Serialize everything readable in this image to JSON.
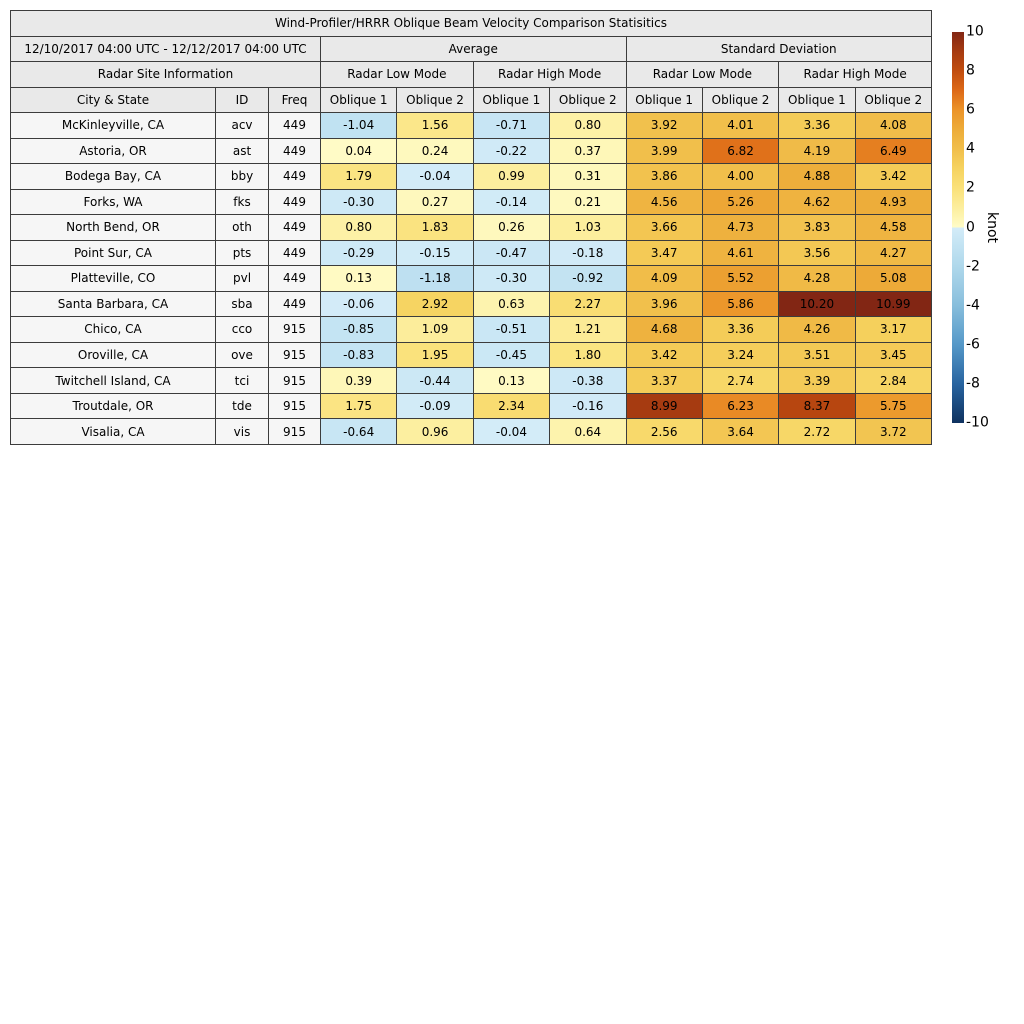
{
  "title": "Wind-Profiler/HRRR Oblique Beam Velocity Comparison Statisitics",
  "period": "12/10/2017 04:00 UTC - 12/12/2017 04:00 UTC",
  "section_headers": {
    "average": "Average",
    "std": "Standard Deviation"
  },
  "site_info_header": "Radar Site Information",
  "mode_headers": [
    "Radar Low Mode",
    "Radar High Mode",
    "Radar Low Mode",
    "Radar High Mode"
  ],
  "column_headers": [
    "City & State",
    "ID",
    "Freq",
    "Oblique 1",
    "Oblique 2",
    "Oblique 1",
    "Oblique 2",
    "Oblique 1",
    "Oblique 2",
    "Oblique 1",
    "Oblique 2"
  ],
  "colorbar": {
    "label": "knot",
    "vmin": -10,
    "vmax": 10,
    "ticks": [
      10,
      8,
      6,
      4,
      2,
      0,
      -2,
      -4,
      -6,
      -8,
      -10
    ],
    "positive_stops": [
      [
        0,
        [
          255,
          252,
          200
        ]
      ],
      [
        1,
        [
          252,
          238,
          158
        ]
      ],
      [
        2,
        [
          250,
          225,
          122
        ]
      ],
      [
        3,
        [
          246,
          211,
          96
        ]
      ],
      [
        4,
        [
          241,
          191,
          75
        ]
      ],
      [
        5,
        [
          237,
          172,
          57
        ]
      ],
      [
        6,
        [
          236,
          148,
          41
        ]
      ],
      [
        7,
        [
          221,
          105,
          23
        ]
      ],
      [
        8,
        [
          193,
          77,
          15
        ]
      ],
      [
        9,
        [
          166,
          59,
          17
        ]
      ],
      [
        10,
        [
          130,
          38,
          20
        ]
      ]
    ],
    "negative_stops": [
      [
        0,
        [
          212,
          236,
          248
        ]
      ],
      [
        -1,
        [
          193,
          226,
          242
        ]
      ],
      [
        -2,
        [
          175,
          216,
          235
        ]
      ],
      [
        -3,
        [
          156,
          203,
          228
        ]
      ],
      [
        -4,
        [
          135,
          190,
          220
        ]
      ],
      [
        -5,
        [
          110,
          171,
          210
        ]
      ],
      [
        -6,
        [
          85,
          152,
          200
        ]
      ],
      [
        -7,
        [
          62,
          126,
          180
        ]
      ],
      [
        -8,
        [
          40,
          100,
          160
        ]
      ],
      [
        -9,
        [
          27,
          75,
          128
        ]
      ],
      [
        -10,
        [
          15,
          50,
          95
        ]
      ]
    ]
  },
  "chart_data": {
    "type": "table",
    "value_columns": [
      "Avg Low Oblique 1",
      "Avg Low Oblique 2",
      "Avg High Oblique 1",
      "Avg High Oblique 2",
      "Std Low Oblique 1",
      "Std Low Oblique 2",
      "Std High Oblique 1",
      "Std High Oblique 2"
    ],
    "rows": [
      {
        "city": "McKinleyville, CA",
        "id": "acv",
        "freq": "449",
        "values": [
          -1.04,
          1.56,
          -0.71,
          0.8,
          3.92,
          4.01,
          3.36,
          4.08
        ]
      },
      {
        "city": "Astoria, OR",
        "id": "ast",
        "freq": "449",
        "values": [
          0.04,
          0.24,
          -0.22,
          0.37,
          3.99,
          6.82,
          4.19,
          6.49
        ]
      },
      {
        "city": "Bodega Bay, CA",
        "id": "bby",
        "freq": "449",
        "values": [
          1.79,
          -0.04,
          0.99,
          0.31,
          3.86,
          4.0,
          4.88,
          3.42
        ]
      },
      {
        "city": "Forks, WA",
        "id": "fks",
        "freq": "449",
        "values": [
          -0.3,
          0.27,
          -0.14,
          0.21,
          4.56,
          5.26,
          4.62,
          4.93
        ]
      },
      {
        "city": "North Bend, OR",
        "id": "oth",
        "freq": "449",
        "values": [
          0.8,
          1.83,
          0.26,
          1.03,
          3.66,
          4.73,
          3.83,
          4.58
        ]
      },
      {
        "city": "Point Sur, CA",
        "id": "pts",
        "freq": "449",
        "values": [
          -0.29,
          -0.15,
          -0.47,
          -0.18,
          3.47,
          4.61,
          3.56,
          4.27
        ]
      },
      {
        "city": "Platteville, CO",
        "id": "pvl",
        "freq": "449",
        "values": [
          0.13,
          -1.18,
          -0.3,
          -0.92,
          4.09,
          5.52,
          4.28,
          5.08
        ]
      },
      {
        "city": "Santa Barbara, CA",
        "id": "sba",
        "freq": "449",
        "values": [
          -0.06,
          2.92,
          0.63,
          2.27,
          3.96,
          5.86,
          10.2,
          10.99
        ]
      },
      {
        "city": "Chico, CA",
        "id": "cco",
        "freq": "915",
        "values": [
          -0.85,
          1.09,
          -0.51,
          1.21,
          4.68,
          3.36,
          4.26,
          3.17
        ]
      },
      {
        "city": "Oroville, CA",
        "id": "ove",
        "freq": "915",
        "values": [
          -0.83,
          1.95,
          -0.45,
          1.8,
          3.42,
          3.24,
          3.51,
          3.45
        ]
      },
      {
        "city": "Twitchell Island, CA",
        "id": "tci",
        "freq": "915",
        "values": [
          0.39,
          -0.44,
          0.13,
          -0.38,
          3.37,
          2.74,
          3.39,
          2.84
        ]
      },
      {
        "city": "Troutdale, OR",
        "id": "tde",
        "freq": "915",
        "values": [
          1.75,
          -0.09,
          2.34,
          -0.16,
          8.99,
          6.23,
          8.37,
          5.75
        ]
      },
      {
        "city": "Visalia, CA",
        "id": "vis",
        "freq": "915",
        "values": [
          -0.64,
          0.96,
          -0.04,
          0.64,
          2.56,
          3.64,
          2.72,
          3.72
        ]
      }
    ]
  }
}
